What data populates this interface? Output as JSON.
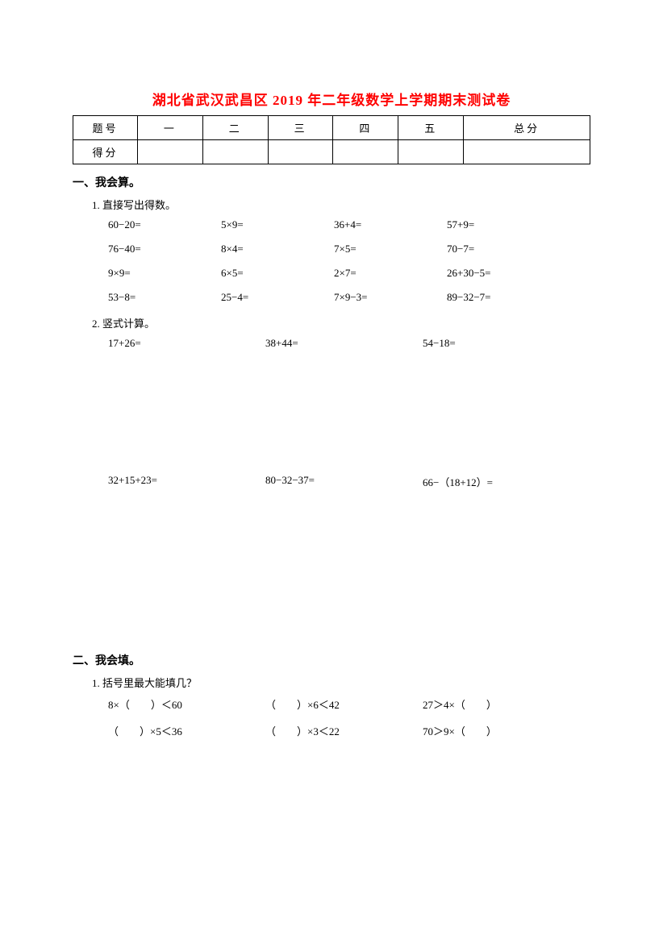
{
  "title": "湖北省武汉武昌区 2019 年二年级数学上学期期末测试卷",
  "table": {
    "row1": [
      "题号",
      "一",
      "二",
      "三",
      "四",
      "五",
      "总分"
    ],
    "row2": [
      "得分",
      "",
      "",
      "",
      "",
      "",
      ""
    ]
  },
  "section1": {
    "heading": "一、我会算。",
    "sub1": "1. 直接写出得数。",
    "calc": [
      [
        "60−20=",
        "5×9=",
        "36+4=",
        "57+9="
      ],
      [
        "76−40=",
        "8×4=",
        "7×5=",
        "70−7="
      ],
      [
        "9×9=",
        "6×5=",
        "2×7=",
        "26+30−5="
      ],
      [
        "53−8=",
        "25−4=",
        "7×9−3=",
        "89−32−7="
      ]
    ],
    "sub2": "2. 竖式计算。",
    "vertical1": [
      "17+26=",
      "38+44=",
      "54−18="
    ],
    "vertical2": [
      "32+15+23=",
      "80−32−37=",
      "66−（18+12）="
    ]
  },
  "section2": {
    "heading": "二、我会填。",
    "sub1": "1. 括号里最大能填几？",
    "fill": [
      [
        "8×（　　）＜60",
        "（　　）×6＜42",
        "27＞4×（　　）"
      ],
      [
        "（　　）×5＜36",
        "（　　）×3＜22",
        "70＞9×（　　）"
      ]
    ]
  }
}
